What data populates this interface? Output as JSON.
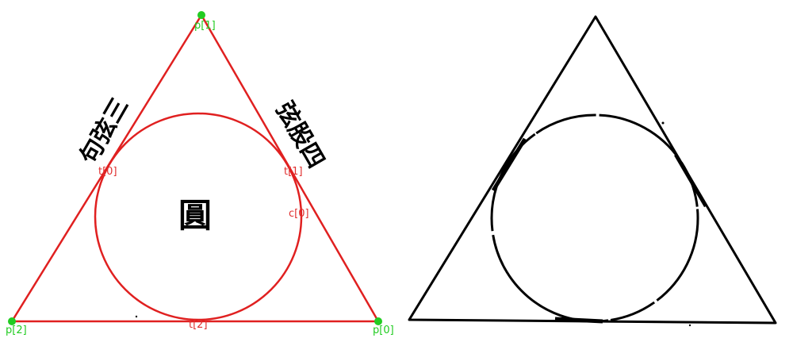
{
  "left_figure": {
    "points": [
      {
        "id": "p0",
        "label": "p[0]"
      },
      {
        "id": "p1",
        "label": "p[1]"
      },
      {
        "id": "p2",
        "label": "p[2]"
      }
    ],
    "tangent_points": [
      {
        "id": "t0",
        "label": "t[0]"
      },
      {
        "id": "t1",
        "label": "t[1]"
      },
      {
        "id": "t2",
        "label": "t[2]"
      }
    ],
    "circle_label": "c[0]",
    "inscriptions": {
      "center": "圓",
      "left_side": "句弦三",
      "right_side": "弦股四"
    },
    "colors": {
      "construction": "#e02020",
      "point": "#22cc22",
      "label": "#e03030"
    }
  },
  "right_figure": {
    "colors": {
      "ink": "#000000"
    }
  }
}
